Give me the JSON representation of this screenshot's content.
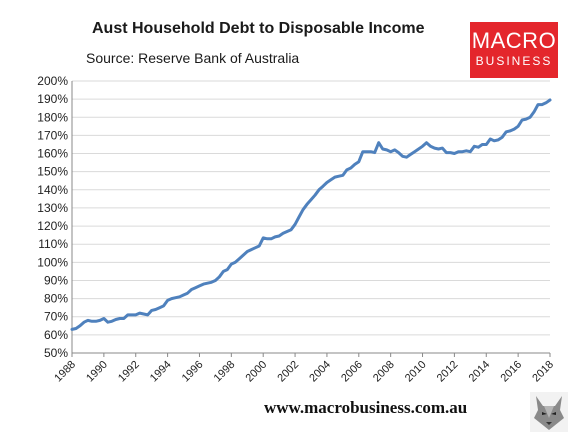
{
  "chart_data": {
    "type": "line",
    "title": "Aust Household Debt to Disposable Income",
    "subtitle": "Source: Reserve Bank of Australia",
    "xlabel": "",
    "ylabel": "",
    "xlim": [
      1988,
      2018
    ],
    "ylim": [
      50,
      200
    ],
    "y_ticks": [
      "50%",
      "60%",
      "70%",
      "80%",
      "90%",
      "100%",
      "110%",
      "120%",
      "130%",
      "140%",
      "150%",
      "160%",
      "170%",
      "180%",
      "190%",
      "200%"
    ],
    "x_ticks": [
      "1988",
      "1990",
      "1992",
      "1994",
      "1996",
      "1998",
      "2000",
      "2002",
      "2004",
      "2006",
      "2008",
      "2010",
      "2012",
      "2014",
      "2016",
      "2018"
    ],
    "grid": true,
    "line_color": "#4f81bd",
    "series": [
      {
        "x": [
          1988.0,
          1988.25,
          1988.5,
          1988.75,
          1989.0,
          1989.25,
          1989.5,
          1989.75,
          1990.0,
          1990.25,
          1990.5,
          1990.75,
          1991.0,
          1991.25,
          1991.5,
          1991.75,
          1992.0,
          1992.25,
          1992.5,
          1992.75,
          1993.0,
          1993.25,
          1993.5,
          1993.75,
          1994.0,
          1994.25,
          1994.5,
          1994.75,
          1995.0,
          1995.25,
          1995.5,
          1995.75,
          1996.0,
          1996.25,
          1996.5,
          1996.75,
          1997.0,
          1997.25,
          1997.5,
          1997.75,
          1998.0,
          1998.25,
          1998.5,
          1998.75,
          1999.0,
          1999.25,
          1999.5,
          1999.75,
          2000.0,
          2000.25,
          2000.5,
          2000.75,
          2001.0,
          2001.25,
          2001.5,
          2001.75,
          2002.0,
          2002.25,
          2002.5,
          2002.75,
          2003.0,
          2003.25,
          2003.5,
          2003.75,
          2004.0,
          2004.25,
          2004.5,
          2004.75,
          2005.0,
          2005.25,
          2005.5,
          2005.75,
          2006.0,
          2006.25,
          2006.5,
          2006.75,
          2007.0,
          2007.25,
          2007.5,
          2007.75,
          2008.0,
          2008.25,
          2008.5,
          2008.75,
          2009.0,
          2009.25,
          2009.5,
          2009.75,
          2010.0,
          2010.25,
          2010.5,
          2010.75,
          2011.0,
          2011.25,
          2011.5,
          2011.75,
          2012.0,
          2012.25,
          2012.5,
          2012.75,
          2013.0,
          2013.25,
          2013.5,
          2013.75,
          2014.0,
          2014.25,
          2014.5,
          2014.75,
          2015.0,
          2015.25,
          2015.5,
          2015.75,
          2016.0,
          2016.25,
          2016.5,
          2016.75,
          2017.0,
          2017.25,
          2017.5,
          2017.75,
          2018.0
        ],
        "values": [
          63,
          63.5,
          65,
          67,
          68,
          67.5,
          67.5,
          68,
          69,
          67,
          67.5,
          68.5,
          69,
          69,
          71,
          71,
          71,
          72,
          71.5,
          71,
          73.5,
          74,
          75,
          76,
          79,
          80,
          80.5,
          81,
          82,
          83,
          85,
          86,
          87,
          88,
          88.5,
          89,
          90,
          92,
          95,
          96,
          99,
          100,
          102,
          104,
          106,
          107,
          108,
          109,
          113.5,
          113,
          113,
          114,
          114.5,
          116,
          117,
          118,
          121,
          125,
          129,
          132,
          134.5,
          137,
          140,
          142,
          144,
          145.5,
          147,
          147.5,
          148,
          151,
          152,
          154,
          155.5,
          161,
          161,
          161,
          160.5,
          166,
          162.5,
          162,
          161,
          162,
          160.5,
          158.5,
          158,
          159.5,
          161,
          162.5,
          164,
          166,
          164,
          163,
          162.5,
          163,
          160.5,
          160.5,
          160,
          161,
          161,
          161.5,
          161,
          164,
          163.5,
          165,
          165,
          168,
          167,
          167.5,
          169,
          172,
          172.5,
          173.5,
          175,
          178.5,
          179,
          180,
          183,
          187,
          187,
          188,
          189.5
        ]
      }
    ]
  },
  "logo": {
    "line1": "MACRO",
    "line2": "BUSINESS"
  },
  "footer": {
    "url": "www.macrobusiness.com.au"
  },
  "colors": {
    "line": "#4f81bd",
    "logo_bg": "#e4262c",
    "grid": "#dadada"
  },
  "icons": {
    "watermark": "wolf-logo-icon"
  }
}
